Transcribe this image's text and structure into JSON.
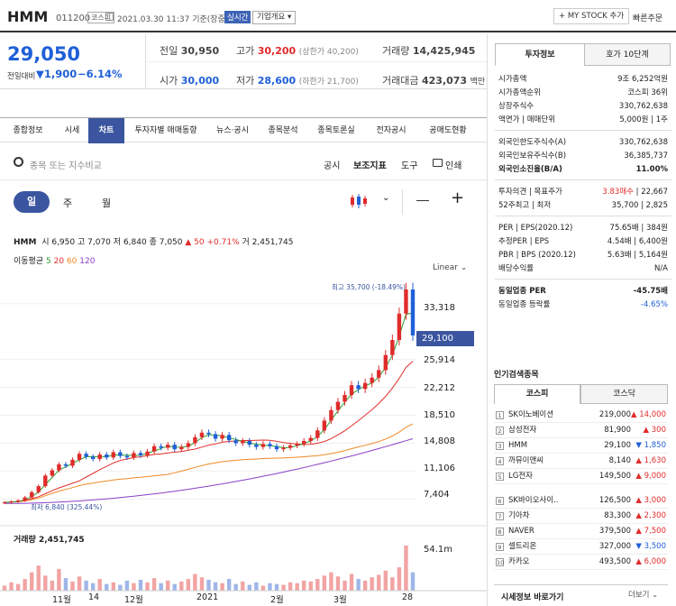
{
  "header": {
    "name": "HMM",
    "code": "011200",
    "market": "코스피",
    "datetime": "2021.03.30 11:37 기준(장중)",
    "realtime": "실시간",
    "company_info": "기업개요",
    "my_stock": "+ MY STOCK 추가",
    "quick_order": "빠른주문"
  },
  "price": {
    "current": "29,050",
    "diff_label": "전일대비",
    "diff": "▼1,900",
    "pct": "−6.14%",
    "prev_label": "전일",
    "prev": "30,950",
    "high_label": "고가",
    "high": "30,200",
    "upper": "(상한가 40,200)",
    "volume_label": "거래량",
    "volume": "14,425,945",
    "open_label": "시가",
    "open": "30,000",
    "low_label": "저가",
    "low": "28,600",
    "lower": "(하한가 21,700)",
    "amount_label": "거래대금",
    "amount": "423,073",
    "amount_unit": "백만"
  },
  "tabs": [
    "종합정보",
    "시세",
    "차트",
    "투자자별 매매동향",
    "뉴스·공시",
    "종목분석",
    "종목토론실",
    "전자공시",
    "공매도현황"
  ],
  "toolbar": {
    "search_placeholder": "종목 또는 지수비교",
    "disclosure": "공시",
    "indicator": "보조지표",
    "tools": "도구",
    "print": "인쇄"
  },
  "periods": [
    "일",
    "주",
    "월"
  ],
  "ohlc": {
    "label": "HMM",
    "o_l": "시",
    "o": "6,950",
    "h_l": "고",
    "h": "7,070",
    "l_l": "저",
    "l": "6,840",
    "c_l": "종",
    "c": "7,050",
    "chg": "▲ 50",
    "pct": "+0.71%",
    "v_l": "거",
    "v": "2,451,745"
  },
  "ma": {
    "label": "이동평균",
    "p5": "5",
    "p20": "20",
    "p60": "60",
    "p120": "120"
  },
  "scale_mode": "Linear",
  "annotations": {
    "max": "최고 35,700 (-18.49%)",
    "min": "최저 6,840 (325.44%)"
  },
  "chart_data": {
    "type": "candlestick",
    "y_ticks": [
      "33,318",
      "25,914",
      "22,212",
      "18,510",
      "14,808",
      "11,106",
      "7,404"
    ],
    "current_marker": "29,100",
    "ylim": [
      6000,
      37000
    ],
    "x_labels": [
      "11월",
      "14",
      "12월",
      "2021",
      "2월",
      "3월",
      "28"
    ],
    "close_series": [
      6950,
      7050,
      7200,
      7600,
      8300,
      9100,
      10500,
      11200,
      12000,
      11800,
      12600,
      13400,
      13000,
      12700,
      13300,
      12900,
      13600,
      13100,
      12900,
      13500,
      13200,
      13700,
      14400,
      14200,
      14600,
      14000,
      14300,
      14800,
      15600,
      16200,
      16000,
      15400,
      15900,
      15200,
      14800,
      15100,
      14600,
      14300,
      14700,
      14400,
      14000,
      14200,
      14500,
      14700,
      15100,
      15500,
      16500,
      17800,
      19200,
      20300,
      21200,
      22500,
      22000,
      22800,
      23500,
      24500,
      26500,
      28500,
      32000,
      35200,
      29100
    ],
    "volume_label": "거래량 2,451,745",
    "volume_max": "54.1m",
    "volume_series": [
      6,
      10,
      8,
      14,
      22,
      30,
      18,
      12,
      26,
      15,
      11,
      17,
      12,
      9,
      14,
      8,
      10,
      7,
      12,
      9,
      13,
      10,
      15,
      9,
      12,
      8,
      11,
      14,
      20,
      16,
      13,
      10,
      9,
      14,
      8,
      11,
      7,
      10,
      6,
      9,
      8,
      7,
      10,
      9,
      12,
      11,
      14,
      18,
      22,
      17,
      12,
      20,
      14,
      12,
      16,
      19,
      24,
      16,
      28,
      54,
      22
    ],
    "ma_colors": {
      "ma5": "#2ca02c",
      "ma20": "#e0302c",
      "ma60": "#f08a24",
      "ma120": "#8a3fc7"
    }
  },
  "investment": {
    "tab1": "투자정보",
    "tab2": "호가 10단계",
    "rows1": [
      {
        "k": "시가총액",
        "v": "9조 6,252억원"
      },
      {
        "k": "시가총액순위",
        "v": "코스피 36위"
      },
      {
        "k": "상장주식수",
        "v": "330,762,638"
      },
      {
        "k": "액면가 | 매매단위",
        "v": "5,000원 | 1주"
      }
    ],
    "rows2": [
      {
        "k": "외국인한도주식수(A)",
        "v": "330,762,638"
      },
      {
        "k": "외국인보유주식수(B)",
        "v": "36,385,737"
      },
      {
        "k": "외국인소진율(B/A)",
        "v": "11.00%"
      }
    ],
    "rows3": [
      {
        "k": "투자의견 | 목표주가",
        "v1": "3.83매수",
        "v2": " | 22,667"
      },
      {
        "k": "52주최고 | 최저",
        "v": "35,700 | 2,825"
      }
    ],
    "rows4": [
      {
        "k": "PER | EPS(2020.12)",
        "v": "75.65배 | 384원"
      },
      {
        "k": "추정PER | EPS",
        "v": "4.54배 | 6,400원"
      },
      {
        "k": "PBR | BPS (2020.12)",
        "v": "5.63배 | 5,164원"
      },
      {
        "k": "배당수익률",
        "v": "N/A"
      }
    ],
    "rows5": [
      {
        "k": "동일업종 PER",
        "v": "-45.75배"
      },
      {
        "k": "동일업종 등락률",
        "v": "-4.65%"
      }
    ]
  },
  "popular": {
    "title": "인기검색종목",
    "tab1": "코스피",
    "tab2": "코스닥",
    "items": [
      {
        "rank": "1",
        "name": "SK이노베이션",
        "price": "219,000",
        "chg": "▲ 14,000",
        "up": true
      },
      {
        "rank": "2",
        "name": "삼성전자",
        "price": "81,900",
        "chg": "▲ 300",
        "up": true
      },
      {
        "rank": "3",
        "name": "HMM",
        "price": "29,100",
        "chg": "▼ 1,850",
        "up": false
      },
      {
        "rank": "4",
        "name": "까뮤이앤씨",
        "price": "8,140",
        "chg": "▲ 1,630",
        "up": true
      },
      {
        "rank": "5",
        "name": "LG전자",
        "price": "149,500",
        "chg": "▲ 9,000",
        "up": true
      },
      {
        "rank": "6",
        "name": "SK바이오사이..",
        "price": "126,500",
        "chg": "▲ 3,000",
        "up": true
      },
      {
        "rank": "7",
        "name": "기아차",
        "price": "83,300",
        "chg": "▲ 2,300",
        "up": true
      },
      {
        "rank": "8",
        "name": "NAVER",
        "price": "379,500",
        "chg": "▲ 7,500",
        "up": true
      },
      {
        "rank": "9",
        "name": "셀트리온",
        "price": "327,000",
        "chg": "▼ 3,500",
        "up": false
      },
      {
        "rank": "10",
        "name": "카카오",
        "price": "493,500",
        "chg": "▲ 6,000",
        "up": true
      }
    ],
    "footer": "시세정보 바로가기",
    "more": "더보기"
  }
}
